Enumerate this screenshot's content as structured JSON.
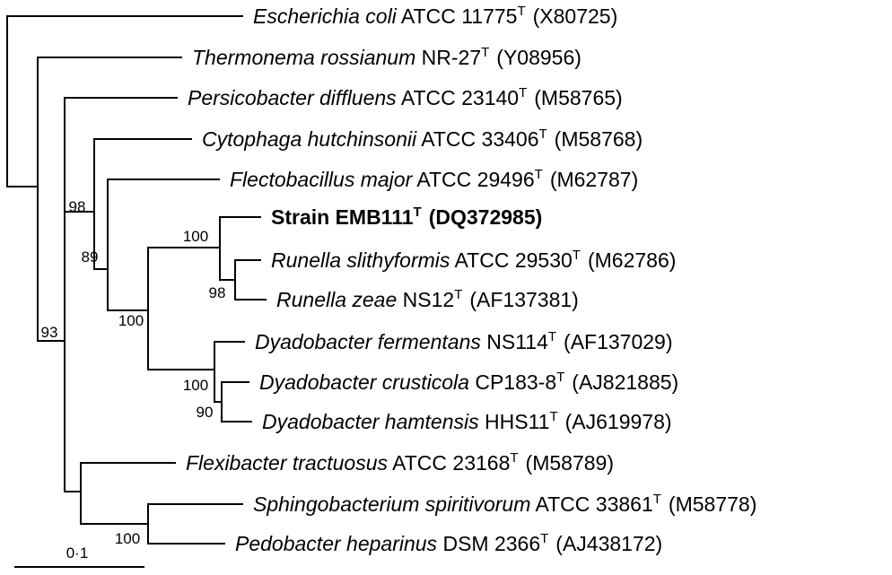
{
  "taxa": [
    {
      "id": "t1",
      "name": "Escherichia coli",
      "strain": "ATCC 11775",
      "superscript": "T",
      "accession": "(X80725)",
      "bold": false
    },
    {
      "id": "t2",
      "name": "Thermonema rossianum",
      "strain": "NR-27",
      "superscript": "T",
      "accession": "(Y08956)",
      "bold": false
    },
    {
      "id": "t3",
      "name": "Persicobacter diffluens",
      "strain": "ATCC 23140",
      "superscript": "T",
      "accession": "(M58765)",
      "bold": false
    },
    {
      "id": "t4",
      "name": "Cytophaga hutchinsonii",
      "strain": "ATCC 33406",
      "superscript": "T",
      "accession": "(M58768)",
      "bold": false
    },
    {
      "id": "t5",
      "name": "Flectobacillus major",
      "strain": "ATCC 29496",
      "superscript": "T",
      "accession": "(M62787)",
      "bold": false
    },
    {
      "id": "t6",
      "name": "",
      "strain": "Strain EMB111",
      "superscript": "T",
      "accession": "(DQ372985)",
      "bold": true
    },
    {
      "id": "t7",
      "name": "Runella slithyformis",
      "strain": "ATCC 29530",
      "superscript": "T",
      "accession": "(M62786)",
      "bold": false
    },
    {
      "id": "t8",
      "name": "Runella zeae",
      "strain": "NS12",
      "superscript": "T",
      "accession": "(AF137381)",
      "bold": false
    },
    {
      "id": "t9",
      "name": "Dyadobacter fermentans",
      "strain": "NS114",
      "superscript": "T",
      "accession": "(AF137029)",
      "bold": false
    },
    {
      "id": "t10",
      "name": "Dyadobacter crusticola",
      "strain": "CP183-8",
      "superscript": "T",
      "accession": "(AJ821885)",
      "bold": false
    },
    {
      "id": "t11",
      "name": "Dyadobacter hamtensis",
      "strain": "HHS11",
      "superscript": "T",
      "accession": "(AJ619978)",
      "bold": false
    },
    {
      "id": "t12",
      "name": "Flexibacter tractuosus",
      "strain": "ATCC 23168",
      "superscript": "T",
      "accession": "(M58789)",
      "bold": false
    },
    {
      "id": "t13",
      "name": "Sphingobacterium spiritivorum",
      "strain": "ATCC 33861",
      "superscript": "T",
      "accession": "(M58778)",
      "bold": false
    },
    {
      "id": "t14",
      "name": "Pedobacter heparinus",
      "strain": "DSM 2366",
      "superscript": "T",
      "accession": "(AJ438172)",
      "bold": false
    }
  ],
  "bootstrap": {
    "b98a": "98",
    "b89": "89",
    "b93": "93",
    "b100a": "100",
    "b98b": "98",
    "b100b": "100",
    "b100c": "100",
    "b90": "90",
    "b100d": "100"
  },
  "scale_bar": {
    "label": "0·1"
  }
}
